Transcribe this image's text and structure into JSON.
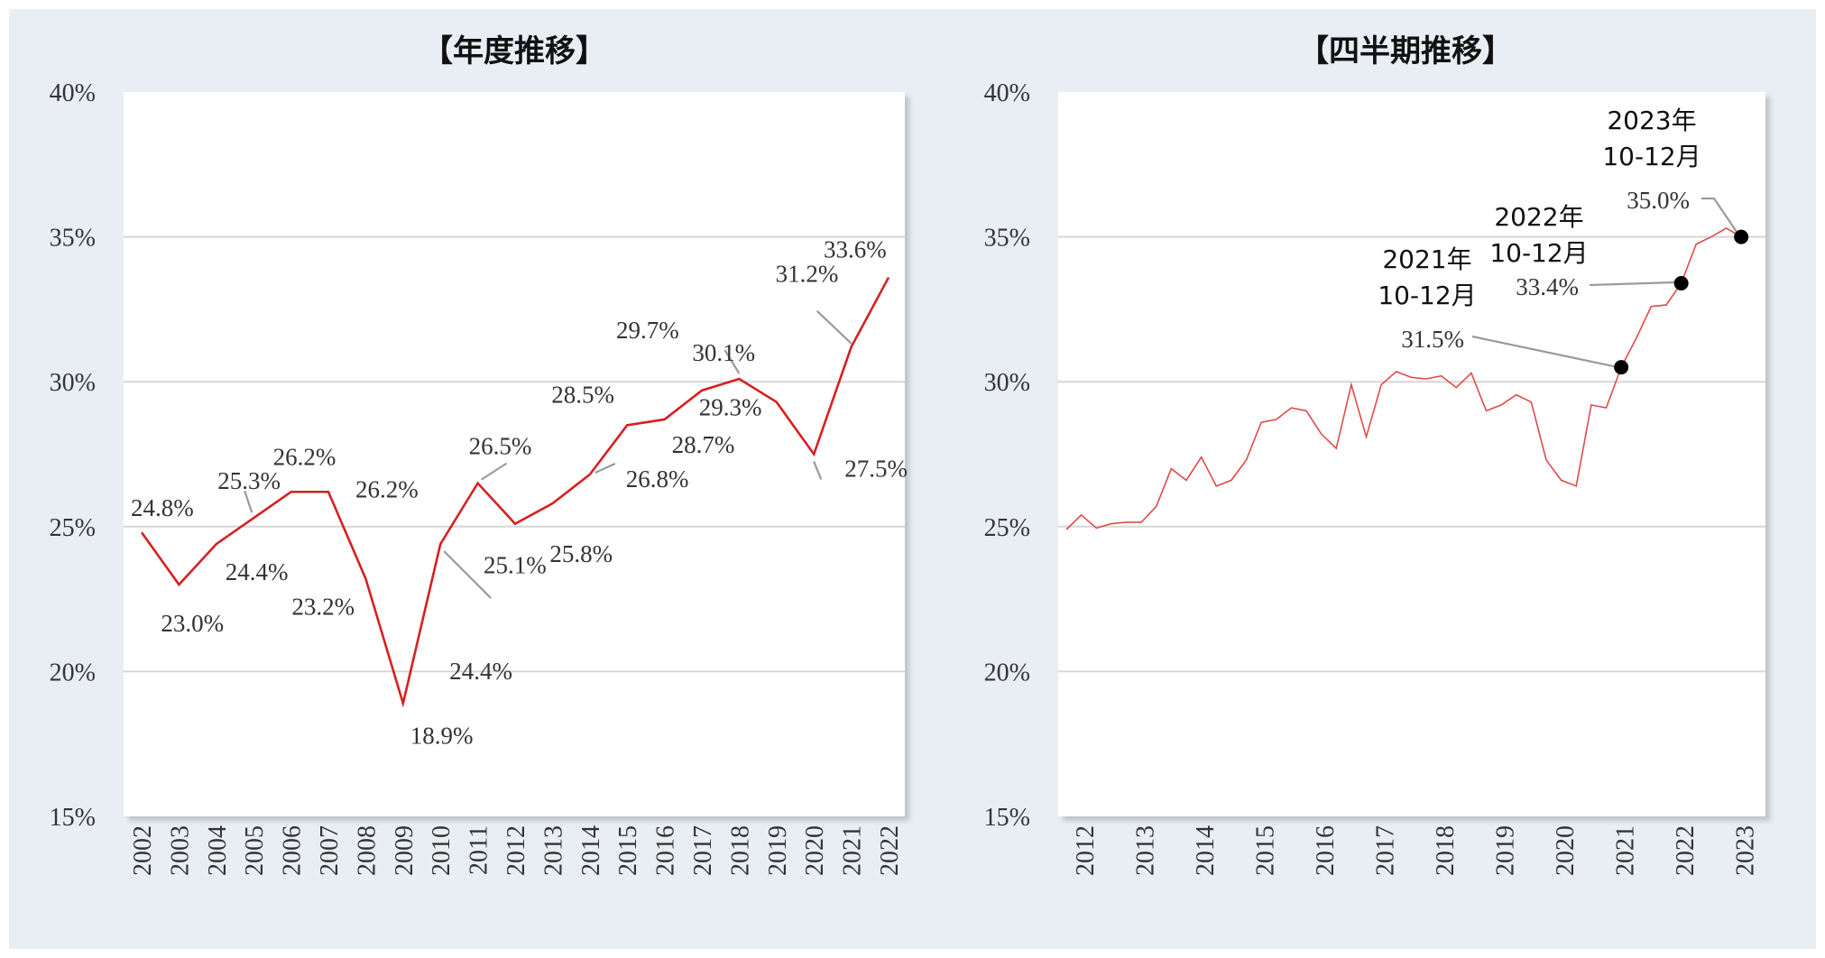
{
  "chart_data": [
    {
      "type": "line",
      "title": "【年度推移】",
      "x": [
        "2002",
        "2003",
        "2004",
        "2005",
        "2006",
        "2007",
        "2008",
        "2009",
        "2010",
        "2011",
        "2012",
        "2013",
        "2014",
        "2015",
        "2016",
        "2017",
        "2018",
        "2019",
        "2020",
        "2021",
        "2022"
      ],
      "series": [
        {
          "values": [
            24.8,
            23.0,
            24.4,
            25.3,
            26.2,
            26.2,
            23.2,
            18.9,
            24.4,
            26.5,
            25.1,
            25.8,
            26.8,
            28.5,
            28.7,
            29.7,
            30.1,
            29.3,
            27.5,
            31.2,
            33.6
          ],
          "color": "#d62020"
        }
      ],
      "data_labels": [
        "24.8%",
        "23.0%",
        "24.4%",
        "25.3%",
        "26.2%",
        "26.2%",
        "23.2%",
        "18.9%",
        "24.4%",
        "26.5%",
        "25.1%",
        "25.8%",
        "26.8%",
        "28.5%",
        "28.7%",
        "29.7%",
        "30.1%",
        "29.3%",
        "27.5%",
        "31.2%",
        "33.6%"
      ],
      "yticks": [
        "15%",
        "20%",
        "25%",
        "30%",
        "35%",
        "40%"
      ],
      "ylim": [
        15,
        40
      ],
      "grid": true
    },
    {
      "type": "line",
      "title": "【四半期推移】",
      "x_start": 2012.0,
      "x_step": 0.25,
      "series": [
        {
          "values": [
            24.9,
            25.4,
            24.95,
            25.1,
            25.15,
            25.15,
            25.7,
            27.0,
            26.6,
            27.4,
            26.4,
            26.6,
            27.3,
            28.6,
            28.7,
            29.1,
            29.0,
            28.2,
            27.7,
            29.9,
            28.1,
            29.9,
            30.35,
            30.15,
            30.1,
            30.2,
            29.8,
            30.3,
            29.0,
            29.2,
            29.55,
            29.3,
            27.3,
            26.6,
            26.4,
            29.2,
            29.1,
            30.5,
            31.5,
            32.6,
            32.65,
            33.4,
            34.75,
            35.0,
            35.3,
            35.0
          ],
          "color": "#e04a4a"
        }
      ],
      "xticks": [
        "2012",
        "2013",
        "2014",
        "2015",
        "2016",
        "2017",
        "2018",
        "2019",
        "2020",
        "2021",
        "2022",
        "2023"
      ],
      "yticks": [
        "15%",
        "20%",
        "25%",
        "30%",
        "35%",
        "40%"
      ],
      "ylim": [
        15,
        40
      ],
      "grid": true,
      "annotations": [
        {
          "year": "2021年",
          "period": "10-12月",
          "value": "31.5%"
        },
        {
          "year": "2022年",
          "period": "10-12月",
          "value": "33.4%"
        },
        {
          "year": "2023年",
          "period": "10-12月",
          "value": "35.0%"
        }
      ]
    }
  ]
}
